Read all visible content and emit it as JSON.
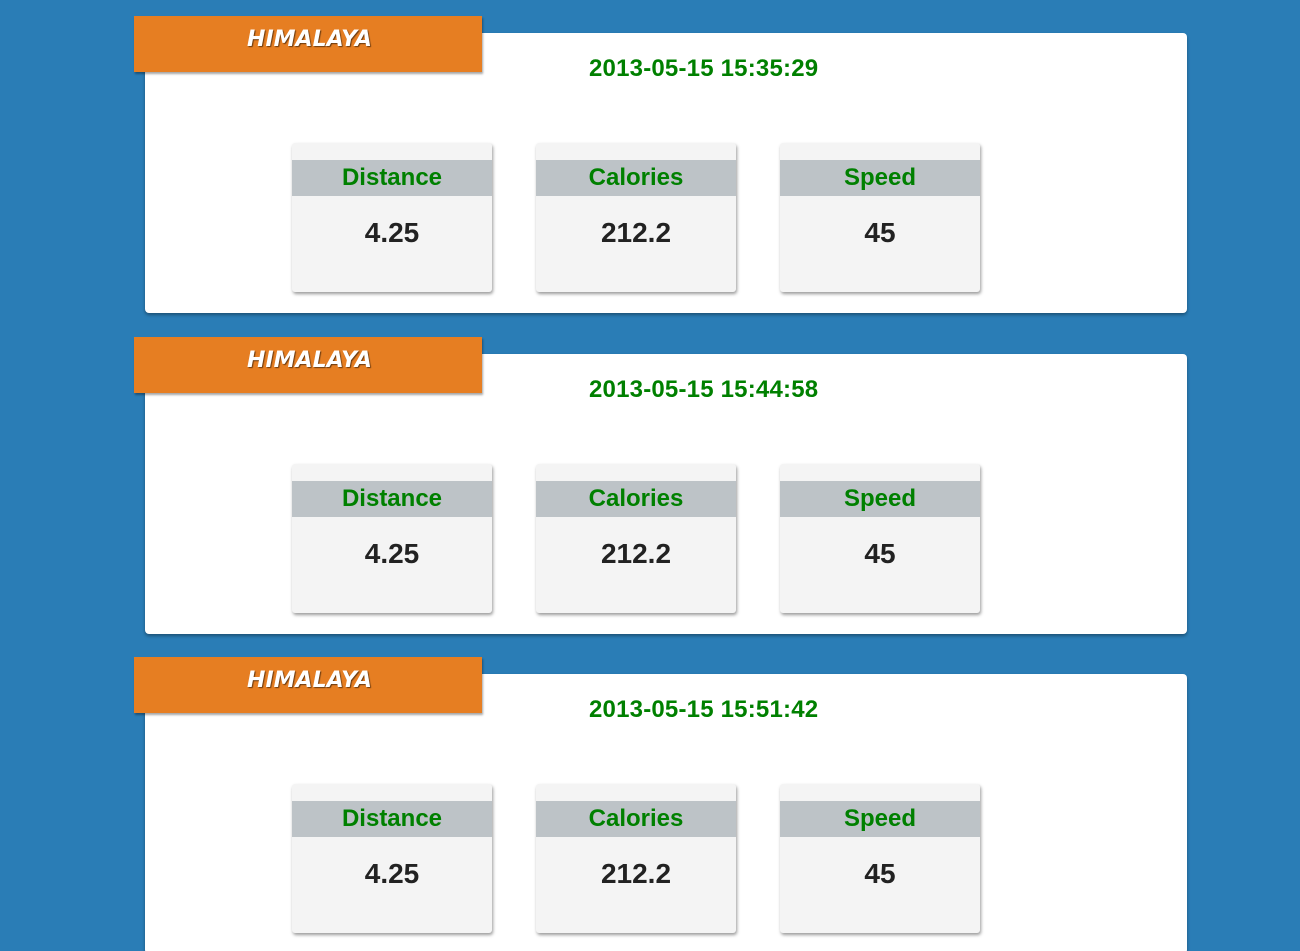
{
  "colors": {
    "page_background": "#2a7db6",
    "ribbon": "#e67e22",
    "timestamp_text": "#008000",
    "stat_label_text": "#008000",
    "stat_header_band": "#bdc3c7",
    "card": "#ffffff"
  },
  "entries": [
    {
      "brand": "HIMALAYA",
      "timestamp": "2013-05-15 15:35:29",
      "stats": [
        {
          "label": "Distance",
          "value": "4.25"
        },
        {
          "label": "Calories",
          "value": "212.2"
        },
        {
          "label": "Speed",
          "value": "45"
        }
      ]
    },
    {
      "brand": "HIMALAYA",
      "timestamp": "2013-05-15 15:44:58",
      "stats": [
        {
          "label": "Distance",
          "value": "4.25"
        },
        {
          "label": "Calories",
          "value": "212.2"
        },
        {
          "label": "Speed",
          "value": "45"
        }
      ]
    },
    {
      "brand": "HIMALAYA",
      "timestamp": "2013-05-15 15:51:42",
      "stats": [
        {
          "label": "Distance",
          "value": "4.25"
        },
        {
          "label": "Calories",
          "value": "212.2"
        },
        {
          "label": "Speed",
          "value": "45"
        }
      ]
    }
  ]
}
